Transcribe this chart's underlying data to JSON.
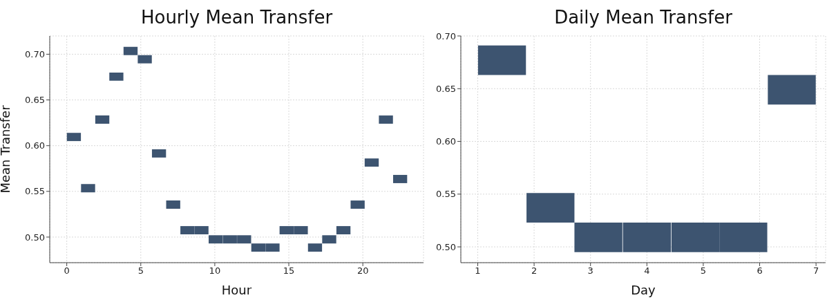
{
  "chart_data": [
    {
      "type": "bar",
      "title": "Hourly Mean Transfer",
      "xlabel": "Hour",
      "ylabel": "Mean Transfer",
      "x": [
        0.48,
        1.44,
        2.4,
        3.35,
        4.31,
        5.27,
        6.23,
        7.19,
        8.15,
        9.1,
        10.06,
        11.02,
        11.98,
        12.94,
        13.9,
        14.85,
        15.81,
        16.77,
        17.73,
        18.69,
        19.65,
        20.6,
        21.56,
        22.52
      ],
      "base": [
        0.605,
        0.549,
        0.624,
        0.671,
        0.699,
        0.69,
        0.587,
        0.531,
        0.503,
        0.503,
        0.493,
        0.493,
        0.493,
        0.484,
        0.484,
        0.503,
        0.503,
        0.484,
        0.493,
        0.503,
        0.531,
        0.577,
        0.624,
        0.559
      ],
      "values": [
        0.009,
        0.009,
        0.009,
        0.009,
        0.009,
        0.009,
        0.009,
        0.009,
        0.009,
        0.009,
        0.009,
        0.009,
        0.009,
        0.009,
        0.009,
        0.009,
        0.009,
        0.009,
        0.009,
        0.009,
        0.009,
        0.009,
        0.009,
        0.009
      ],
      "color": "#3d5470",
      "xlim": [
        -1.15,
        24.1
      ],
      "xticks": [
        0,
        5,
        10,
        15,
        20
      ],
      "ylim": [
        0.472,
        0.72
      ],
      "yticks": [
        {
          "value": 0.5,
          "label": "0.50"
        },
        {
          "value": 0.55,
          "label": "0.55"
        },
        {
          "value": 0.6,
          "label": "0.60"
        },
        {
          "value": 0.65,
          "label": "0.65"
        },
        {
          "value": 0.7,
          "label": "0.70"
        }
      ],
      "grid": true
    },
    {
      "type": "bar",
      "title": "Daily Mean Transfer",
      "xlabel": "Day",
      "x": [
        1.43,
        2.29,
        3.14,
        4.0,
        4.86,
        5.71,
        6.57
      ],
      "base": [
        0.663,
        0.523,
        0.495,
        0.495,
        0.495,
        0.495,
        0.635
      ],
      "values": [
        0.028,
        0.028,
        0.028,
        0.028,
        0.028,
        0.028,
        0.028
      ],
      "color": "#3d5470",
      "xlim": [
        0.7,
        7.17
      ],
      "xticks": [
        1,
        2,
        3,
        4,
        5,
        6,
        7
      ],
      "ylim": [
        0.485,
        0.7
      ],
      "yticks": [
        {
          "value": 0.5,
          "label": "0.50"
        },
        {
          "value": 0.55,
          "label": "0.55"
        },
        {
          "value": 0.6,
          "label": "0.60"
        },
        {
          "value": 0.65,
          "label": "0.65"
        },
        {
          "value": 0.7,
          "label": "0.70"
        }
      ],
      "grid": true
    }
  ]
}
